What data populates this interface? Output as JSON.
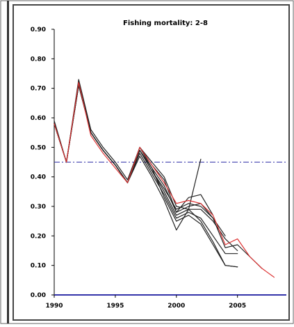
{
  "chart_data": {
    "type": "line",
    "title": "Fishing mortality: 2-8",
    "xlabel": "",
    "ylabel": "",
    "xlim": [
      1990,
      2009
    ],
    "ylim": [
      0,
      0.9
    ],
    "x_ticks": [
      1990,
      1995,
      2000,
      2005
    ],
    "x_tick_labels": [
      "1990",
      "1995",
      "2000",
      "2005"
    ],
    "y_ticks": [
      0.0,
      0.1,
      0.2,
      0.3,
      0.4,
      0.5,
      0.6,
      0.7,
      0.8,
      0.9
    ],
    "y_tick_labels": [
      "0.00",
      "0.10",
      "0.20",
      "0.30",
      "0.40",
      "0.50",
      "0.60",
      "0.70",
      "0.80",
      "0.90"
    ],
    "grid": false,
    "legend": "none",
    "reference_line": {
      "y": 0.45,
      "style": "dash-dot",
      "color": "#3333aa"
    },
    "series": [
      {
        "color": "#222222",
        "x": [
          1990,
          1991,
          1992,
          1993,
          1994,
          1995,
          1996,
          1997,
          1998,
          1999,
          2000,
          2001,
          2002
        ],
        "y": [
          0.59,
          0.45,
          0.73,
          0.56,
          0.5,
          0.45,
          0.39,
          0.5,
          0.45,
          0.4,
          0.3,
          0.29,
          0.46
        ]
      },
      {
        "color": "#222222",
        "x": [
          1990,
          1991,
          1992,
          1993,
          1994,
          1995,
          1996,
          1997,
          1998,
          1999,
          2000,
          2001,
          2002,
          2003
        ],
        "y": [
          0.58,
          0.45,
          0.72,
          0.55,
          0.49,
          0.44,
          0.38,
          0.5,
          0.44,
          0.39,
          0.28,
          0.33,
          0.34,
          0.27
        ]
      },
      {
        "color": "#222222",
        "x": [
          1990,
          1991,
          1992,
          1993,
          1994,
          1995,
          1996,
          1997,
          1998,
          1999,
          2000,
          2001,
          2002,
          2003,
          2004
        ],
        "y": [
          0.58,
          0.45,
          0.72,
          0.55,
          0.49,
          0.44,
          0.38,
          0.5,
          0.43,
          0.37,
          0.28,
          0.3,
          0.31,
          0.26,
          0.2
        ]
      },
      {
        "color": "#222222",
        "x": [
          1990,
          1991,
          1992,
          1993,
          1994,
          1995,
          1996,
          1997,
          1998,
          1999,
          2000,
          2001,
          2002,
          2003,
          2004,
          2005
        ],
        "y": [
          0.58,
          0.45,
          0.71,
          0.55,
          0.49,
          0.44,
          0.38,
          0.49,
          0.42,
          0.35,
          0.27,
          0.29,
          0.29,
          0.25,
          0.19,
          0.15
        ]
      },
      {
        "color": "#222222",
        "x": [
          1990,
          1991,
          1992,
          1993,
          1994,
          1995,
          1996,
          1997,
          1998,
          1999,
          2000,
          2001,
          2002,
          2003,
          2004,
          2005
        ],
        "y": [
          0.58,
          0.45,
          0.71,
          0.55,
          0.49,
          0.44,
          0.38,
          0.48,
          0.41,
          0.34,
          0.26,
          0.28,
          0.26,
          0.2,
          0.14,
          0.14
        ]
      },
      {
        "color": "#222222",
        "x": [
          1990,
          1991,
          1992,
          1993,
          1994,
          1995,
          1996,
          1997,
          1998,
          1999,
          2000,
          2001,
          2002,
          2003,
          2004,
          2005
        ],
        "y": [
          0.58,
          0.45,
          0.71,
          0.55,
          0.49,
          0.44,
          0.38,
          0.47,
          0.4,
          0.32,
          0.22,
          0.29,
          0.25,
          0.18,
          0.1,
          0.095
        ]
      },
      {
        "color": "#222222",
        "x": [
          1990,
          1991,
          1992,
          1993,
          1994,
          1995,
          1996,
          1997,
          1998,
          1999,
          2000,
          2001,
          2002,
          2003,
          2004,
          2005,
          2006,
          2007
        ],
        "y": [
          0.58,
          0.45,
          0.71,
          0.55,
          0.49,
          0.44,
          0.38,
          0.49,
          0.42,
          0.36,
          0.29,
          0.31,
          0.3,
          0.26,
          0.16,
          0.17,
          0.13,
          0.09
        ]
      },
      {
        "color": "#222222",
        "x": [
          1990,
          1991,
          1992,
          1993,
          1994,
          1995,
          1996,
          1997,
          1998,
          1999,
          2000,
          2001,
          2002,
          2003,
          2004,
          2005
        ],
        "y": [
          0.58,
          0.45,
          0.72,
          0.55,
          0.49,
          0.44,
          0.38,
          0.49,
          0.43,
          0.33,
          0.25,
          0.27,
          0.24,
          0.17,
          0.1,
          0.095
        ]
      },
      {
        "color": "#dd3333",
        "x": [
          1990,
          1991,
          1992,
          1993,
          1994,
          1995,
          1996,
          1997,
          1998,
          1999,
          2000,
          2001,
          2002,
          2003,
          2004,
          2005,
          2006,
          2007,
          2008
        ],
        "y": [
          0.58,
          0.45,
          0.72,
          0.54,
          0.48,
          0.43,
          0.38,
          0.5,
          0.44,
          0.38,
          0.31,
          0.32,
          0.31,
          0.27,
          0.17,
          0.19,
          0.13,
          0.09,
          0.06
        ]
      }
    ]
  }
}
